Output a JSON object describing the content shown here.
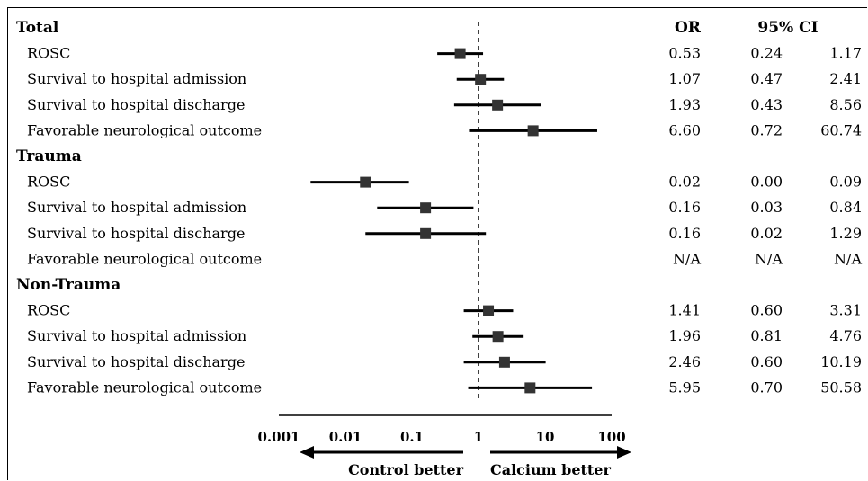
{
  "chart_data": {
    "type": "forest",
    "x_scale": "log",
    "xlim": [
      0.001,
      100
    ],
    "reference_line": 1,
    "x_ticks": [
      "0.001",
      "0.01",
      "0.1",
      "1",
      "10",
      "100"
    ],
    "direction_labels": {
      "left": "Control better",
      "right": "Calcium better"
    },
    "columns": {
      "or": "OR",
      "ci": "95% CI"
    },
    "groups": [
      {
        "name": "Total",
        "rows": [
          {
            "label": "ROSC",
            "or": 0.53,
            "lo": 0.24,
            "hi": 1.17,
            "or_text": "0.53",
            "lo_text": "0.24",
            "hi_text": "1.17"
          },
          {
            "label": "Survival to hospital admission",
            "or": 1.07,
            "lo": 0.47,
            "hi": 2.41,
            "or_text": "1.07",
            "lo_text": "0.47",
            "hi_text": "2.41"
          },
          {
            "label": "Survival to hospital discharge",
            "or": 1.93,
            "lo": 0.43,
            "hi": 8.56,
            "or_text": "1.93",
            "lo_text": "0.43",
            "hi_text": "8.56"
          },
          {
            "label": "Favorable neurological outcome",
            "or": 6.6,
            "lo": 0.72,
            "hi": 60.74,
            "or_text": "6.60",
            "lo_text": "0.72",
            "hi_text": "60.74"
          }
        ]
      },
      {
        "name": "Trauma",
        "rows": [
          {
            "label": "ROSC",
            "or": 0.02,
            "lo": 0.003,
            "hi": 0.09,
            "or_text": "0.02",
            "lo_text": "0.00",
            "hi_text": "0.09"
          },
          {
            "label": "Survival to hospital admission",
            "or": 0.16,
            "lo": 0.03,
            "hi": 0.84,
            "or_text": "0.16",
            "lo_text": "0.03",
            "hi_text": "0.84"
          },
          {
            "label": "Survival to hospital discharge",
            "or": 0.16,
            "lo": 0.02,
            "hi": 1.29,
            "or_text": "0.16",
            "lo_text": "0.02",
            "hi_text": "1.29"
          },
          {
            "label": "Favorable neurological outcome",
            "or": null,
            "lo": null,
            "hi": null,
            "or_text": "N/A",
            "lo_text": "N/A",
            "hi_text": "N/A"
          }
        ]
      },
      {
        "name": "Non-Trauma",
        "rows": [
          {
            "label": "ROSC",
            "or": 1.41,
            "lo": 0.6,
            "hi": 3.31,
            "or_text": "1.41",
            "lo_text": "0.60",
            "hi_text": "3.31"
          },
          {
            "label": "Survival to hospital admission",
            "or": 1.96,
            "lo": 0.81,
            "hi": 4.76,
            "or_text": "1.96",
            "lo_text": "0.81",
            "hi_text": "4.76"
          },
          {
            "label": "Survival to hospital discharge",
            "or": 2.46,
            "lo": 0.6,
            "hi": 10.19,
            "or_text": "2.46",
            "lo_text": "0.60",
            "hi_text": "10.19"
          },
          {
            "label": "Favorable neurological outcome",
            "or": 5.95,
            "lo": 0.7,
            "hi": 50.58,
            "or_text": "5.95",
            "lo_text": "0.70",
            "hi_text": "50.58"
          }
        ]
      }
    ]
  }
}
